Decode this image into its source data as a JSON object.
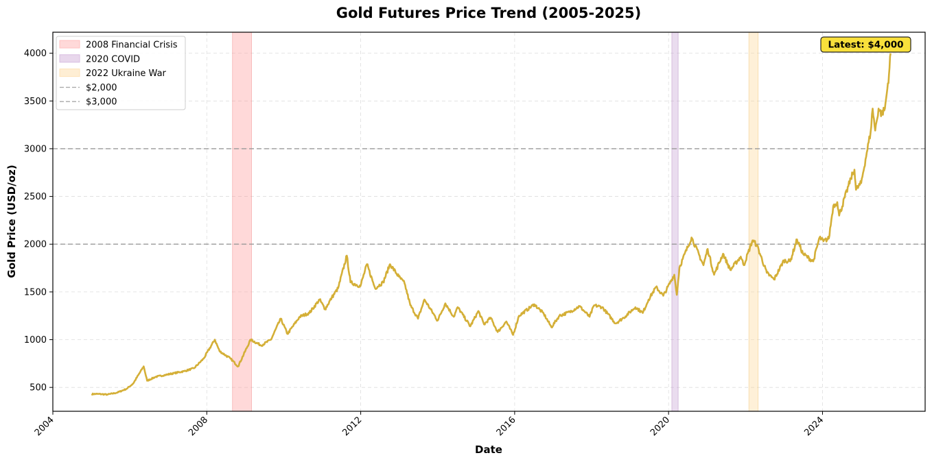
{
  "chart_data": {
    "type": "line",
    "title": "Gold Futures Price Trend (2005-2025)",
    "xlabel": "Date",
    "ylabel": "Gold Price (USD/oz)",
    "xlim": [
      "2004-01-01",
      "2026-09-01"
    ],
    "ylim": [
      250,
      4220
    ],
    "x_ticks": [
      "2004",
      "2008",
      "2012",
      "2016",
      "2020",
      "2024"
    ],
    "y_ticks": [
      500,
      1000,
      1500,
      2000,
      2500,
      3000,
      3500,
      4000
    ],
    "grid": true,
    "line_color": "#d4af37",
    "series": [
      {
        "x": [
          "2005-01-03",
          "2005-03-01",
          "2005-06-01",
          "2005-09-01",
          "2005-12-01",
          "2006-02-01",
          "2006-05-12",
          "2006-06-14",
          "2006-09-01",
          "2006-12-01",
          "2007-03-01",
          "2007-06-01",
          "2007-09-01",
          "2007-12-01",
          "2008-03-17",
          "2008-05-01",
          "2008-08-15",
          "2008-10-24",
          "2009-02-20",
          "2009-06-01",
          "2009-09-01",
          "2009-12-03",
          "2010-02-05",
          "2010-06-01",
          "2010-09-01",
          "2010-12-07",
          "2011-01-28",
          "2011-04-01",
          "2011-06-01",
          "2011-08-22",
          "2011-09-26",
          "2011-12-29",
          "2012-02-29",
          "2012-05-16",
          "2012-08-01",
          "2012-10-05",
          "2012-12-28",
          "2013-02-20",
          "2013-04-16",
          "2013-06-28",
          "2013-08-28",
          "2013-12-31",
          "2014-03-14",
          "2014-06-02",
          "2014-07-10",
          "2014-11-06",
          "2015-01-22",
          "2015-03-17",
          "2015-05-18",
          "2015-07-24",
          "2015-10-14",
          "2015-12-17",
          "2016-02-11",
          "2016-07-06",
          "2016-10-04",
          "2016-12-15",
          "2017-03-01",
          "2017-06-06",
          "2017-09-08",
          "2017-12-12",
          "2018-01-25",
          "2018-04-11",
          "2018-08-16",
          "2018-11-01",
          "2019-02-20",
          "2019-05-01",
          "2019-06-25",
          "2019-09-04",
          "2019-11-12",
          "2020-02-24",
          "2020-03-19",
          "2020-04-14",
          "2020-08-06",
          "2020-11-27",
          "2021-01-06",
          "2021-03-08",
          "2021-06-01",
          "2021-08-09",
          "2021-11-16",
          "2021-12-15",
          "2022-03-08",
          "2022-04-18",
          "2022-07-21",
          "2022-09-28",
          "2022-12-30",
          "2023-02-28",
          "2023-05-04",
          "2023-06-29",
          "2023-10-05",
          "2023-12-04",
          "2024-01-10",
          "2024-03-01",
          "2024-04-12",
          "2024-05-20",
          "2024-06-07",
          "2024-09-26",
          "2024-10-30",
          "2024-11-14",
          "2025-01-02",
          "2025-02-24",
          "2025-04-01",
          "2025-04-21",
          "2025-05-15",
          "2025-06-16",
          "2025-07-15",
          "2025-08-15",
          "2025-09-02",
          "2025-09-23",
          "2025-10-08"
        ],
        "y": [
          430,
          432,
          425,
          445,
          485,
          540,
          720,
          570,
          610,
          630,
          650,
          670,
          700,
          800,
          1000,
          880,
          800,
          720,
          1000,
          940,
          1000,
          1220,
          1060,
          1240,
          1280,
          1420,
          1320,
          1440,
          1540,
          1880,
          1600,
          1560,
          1790,
          1540,
          1600,
          1790,
          1660,
          1590,
          1360,
          1220,
          1420,
          1200,
          1380,
          1240,
          1340,
          1140,
          1300,
          1160,
          1230,
          1080,
          1190,
          1050,
          1250,
          1370,
          1270,
          1130,
          1250,
          1290,
          1350,
          1240,
          1360,
          1340,
          1170,
          1230,
          1340,
          1280,
          1420,
          1550,
          1460,
          1680,
          1470,
          1760,
          2070,
          1780,
          1950,
          1680,
          1900,
          1730,
          1870,
          1780,
          2040,
          1990,
          1700,
          1630,
          1830,
          1820,
          2050,
          1900,
          1820,
          2070,
          2030,
          2060,
          2400,
          2440,
          2300,
          2690,
          2780,
          2570,
          2640,
          2960,
          3170,
          3420,
          3190,
          3420,
          3360,
          3420,
          3580,
          3780,
          4000
        ]
      }
    ],
    "legend": {
      "position": "top-left",
      "entries": [
        {
          "label": "2008 Financial Crisis",
          "kind": "patch",
          "color": "#ffc0c0"
        },
        {
          "label": "2020 COVID",
          "kind": "patch",
          "color": "#d8bde0"
        },
        {
          "label": "2022 Ukraine War",
          "kind": "patch",
          "color": "#fde3b8"
        },
        {
          "label": "$2,000",
          "kind": "dashed-line",
          "color": "#aaaaaa"
        },
        {
          "label": "$3,000",
          "kind": "dashed-line",
          "color": "#aaaaaa"
        }
      ]
    },
    "shaded_periods": [
      {
        "name": "2008 Financial Crisis",
        "start": "2008-09-01",
        "end": "2009-03-01",
        "color": "#ff9a9a",
        "edge": "#f08a8a"
      },
      {
        "name": "2020 COVID",
        "start": "2020-02-01",
        "end": "2020-04-01",
        "color": "#c9a3d4",
        "edge": "#b890c4"
      },
      {
        "name": "2022 Ukraine War",
        "start": "2022-02-01",
        "end": "2022-04-30",
        "color": "#fcd799",
        "edge": "#f0c77a"
      }
    ],
    "reference_lines": [
      {
        "label": "$2,000",
        "y": 2000,
        "color": "#999999"
      },
      {
        "label": "$3,000",
        "y": 3000,
        "color": "#999999"
      }
    ],
    "annotation": {
      "text": "Latest: $4,000",
      "box_color": "#f9e03b",
      "edge_color": "#222222",
      "position": "top-right"
    }
  }
}
